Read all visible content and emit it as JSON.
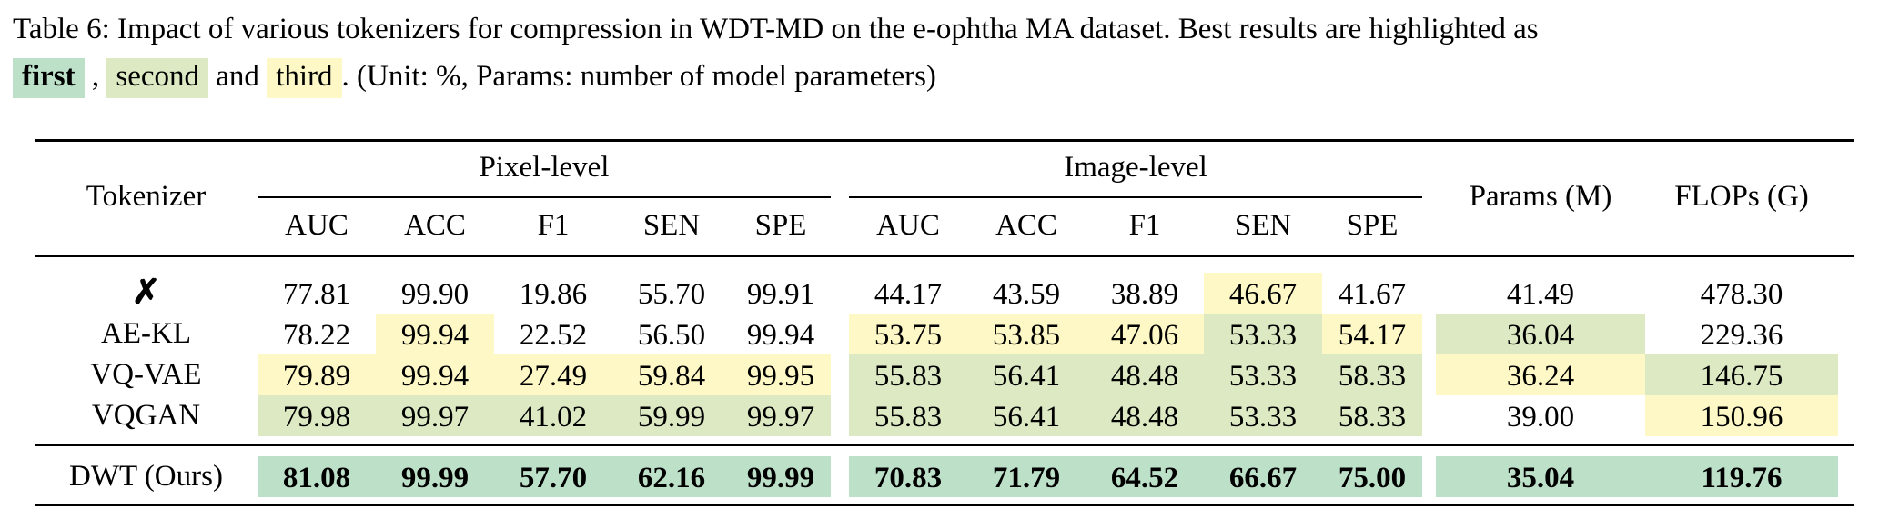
{
  "caption": {
    "label": "Table 6:",
    "text": " Impact of various tokenizers for compression in WDT-MD on the e-ophtha MA dataset. Best results are highlighted as ",
    "first": "first",
    "comma": ",",
    "second": "second",
    "and": "and",
    "third": "third",
    "tail": ". (Unit: %, Params: number of model parameters)"
  },
  "header": {
    "tokenizer": "Tokenizer",
    "group_pixel": "Pixel-level",
    "group_image": "Image-level",
    "params": "Params (M)",
    "flops": "FLOPs (G)",
    "metrics": [
      "AUC",
      "ACC",
      "F1",
      "SEN",
      "SPE",
      "AUC",
      "ACC",
      "F1",
      "SEN",
      "SPE"
    ]
  },
  "colors": {
    "first": "#bde0c9",
    "second": "#dce9c3",
    "third": "#fdf8c6"
  },
  "rows": [
    {
      "name": "✗",
      "values": [
        "77.81",
        "99.90",
        "19.86",
        "55.70",
        "99.91",
        "44.17",
        "43.59",
        "38.89",
        "46.67",
        "41.67",
        "41.49",
        "478.30"
      ],
      "ranks": [
        "",
        "",
        "",
        "",
        "",
        "",
        "",
        "",
        "third",
        "",
        "",
        ""
      ]
    },
    {
      "name": "AE-KL",
      "values": [
        "78.22",
        "99.94",
        "22.52",
        "56.50",
        "99.94",
        "53.75",
        "53.85",
        "47.06",
        "53.33",
        "54.17",
        "36.04",
        "229.36"
      ],
      "ranks": [
        "",
        "third",
        "",
        "",
        "",
        "third",
        "third",
        "third",
        "second",
        "third",
        "second",
        ""
      ]
    },
    {
      "name": "VQ-VAE",
      "values": [
        "79.89",
        "99.94",
        "27.49",
        "59.84",
        "99.95",
        "55.83",
        "56.41",
        "48.48",
        "53.33",
        "58.33",
        "36.24",
        "146.75"
      ],
      "ranks": [
        "third",
        "third",
        "third",
        "third",
        "third",
        "second",
        "second",
        "second",
        "second",
        "second",
        "third",
        "second"
      ]
    },
    {
      "name": "VQGAN",
      "values": [
        "79.98",
        "99.97",
        "41.02",
        "59.99",
        "99.97",
        "55.83",
        "56.41",
        "48.48",
        "53.33",
        "58.33",
        "39.00",
        "150.96"
      ],
      "ranks": [
        "second",
        "second",
        "second",
        "second",
        "second",
        "second",
        "second",
        "second",
        "second",
        "second",
        "",
        "third"
      ]
    },
    {
      "name": "DWT (Ours)",
      "values": [
        "81.08",
        "99.99",
        "57.70",
        "62.16",
        "99.99",
        "70.83",
        "71.79",
        "64.52",
        "66.67",
        "75.00",
        "35.04",
        "119.76"
      ],
      "ranks": [
        "first",
        "first",
        "first",
        "first",
        "first",
        "first",
        "first",
        "first",
        "first",
        "first",
        "first",
        "first"
      ]
    }
  ]
}
